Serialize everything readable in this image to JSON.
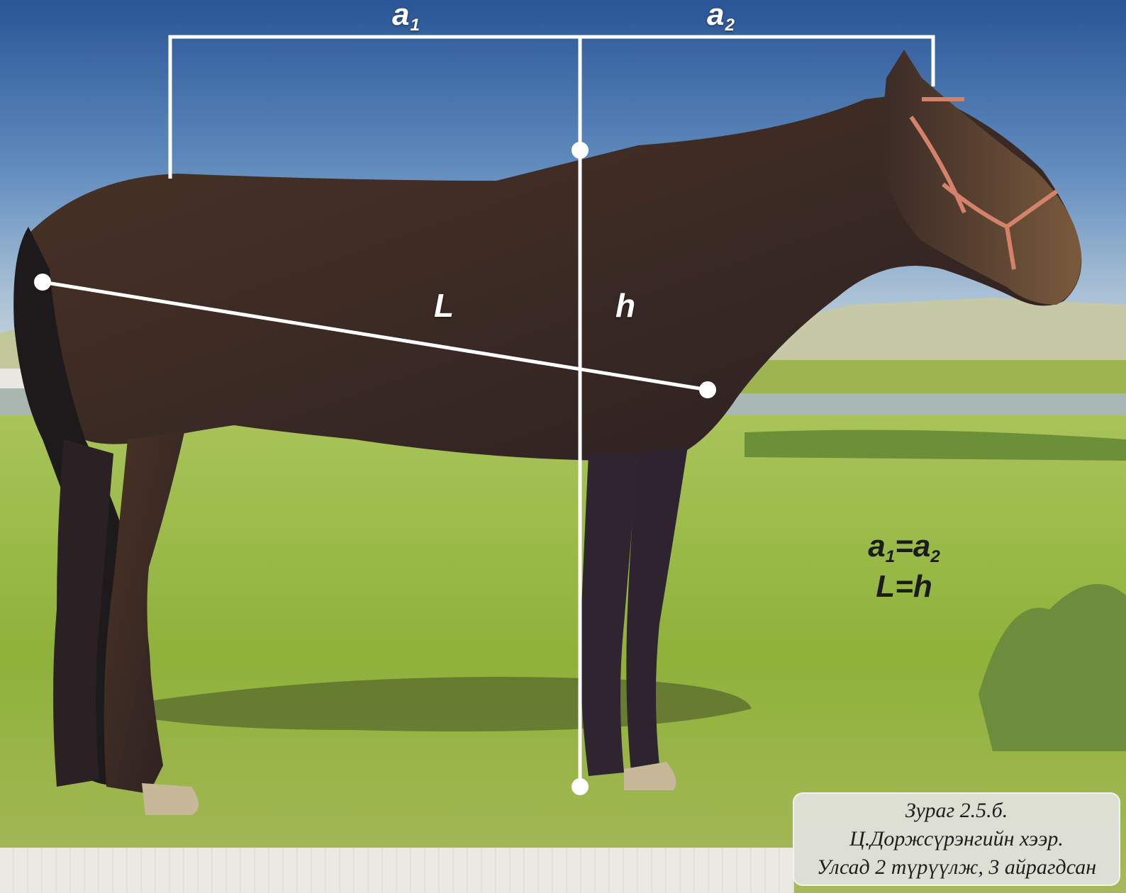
{
  "measure_labels": {
    "a1": {
      "base": "a",
      "sub": "1"
    },
    "a2": {
      "base": "a",
      "sub": "2"
    },
    "L": "L",
    "h": "h"
  },
  "formula": {
    "line1": {
      "a": "a",
      "sub1": "1",
      "eq": "=a",
      "sub2": "2"
    },
    "line2": "L=h"
  },
  "caption": {
    "line1": "Зураг 2.5.б.",
    "line2": "Ц.Доржсүрэнгийн хээр.",
    "line3": "Улсад 2 түрүүлж, 3 айрагдсан"
  },
  "colors": {
    "sky_top": "#2f5a9a",
    "sky_bottom": "#b9cde0",
    "grass": "#9bbb3e",
    "horse": "#3a2a22",
    "guide_line": "#ffffff"
  }
}
